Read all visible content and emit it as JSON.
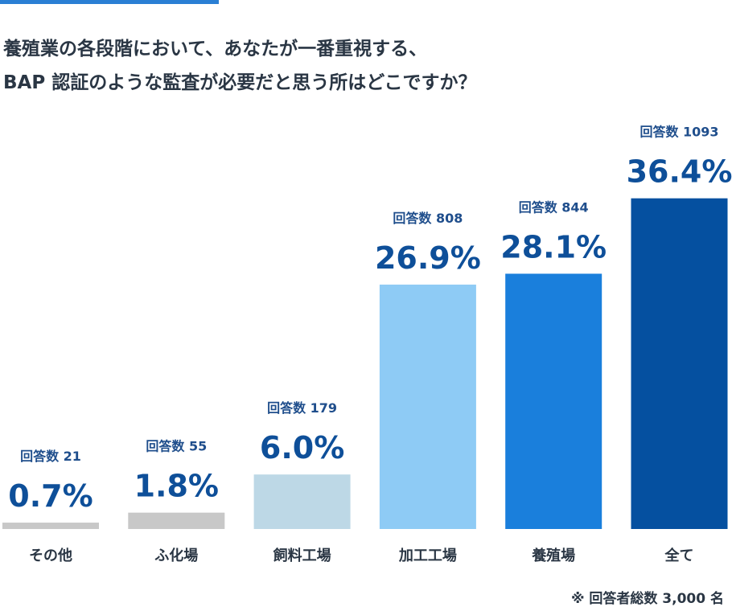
{
  "accent_color": "#2a7fd4",
  "title": "養殖業の各段階において、あなたが一番重視する、\nBAP 認証のような監査が必要だと思う所はどこですか？",
  "footnote": "※ 回答者総数 3,000 名",
  "chart_data": {
    "type": "bar",
    "title": "養殖業の各段階において、あなたが一番重視する、BAP 認証のような監査が必要だと思う所はどこですか？",
    "xlabel": "",
    "ylabel": "",
    "ylim": [
      0,
      40
    ],
    "grid": false,
    "categories": [
      "その他",
      "ふ化場",
      "飼料工場",
      "加工工場",
      "養殖場",
      "全て"
    ],
    "values": [
      0.7,
      1.8,
      6.0,
      26.9,
      28.1,
      36.4
    ],
    "value_labels": [
      "0.7%",
      "1.8%",
      "6.0%",
      "26.9%",
      "28.1%",
      "36.4%"
    ],
    "count_labels": [
      "回答数 21",
      "回答数 55",
      "回答数 179",
      "回答数 808",
      "回答数 844",
      "回答数 1093"
    ],
    "colors": [
      "#c8c8c8",
      "#c8c8c8",
      "#bdd8e6",
      "#8ecbf5",
      "#1a7fdc",
      "#0550a0"
    ]
  }
}
